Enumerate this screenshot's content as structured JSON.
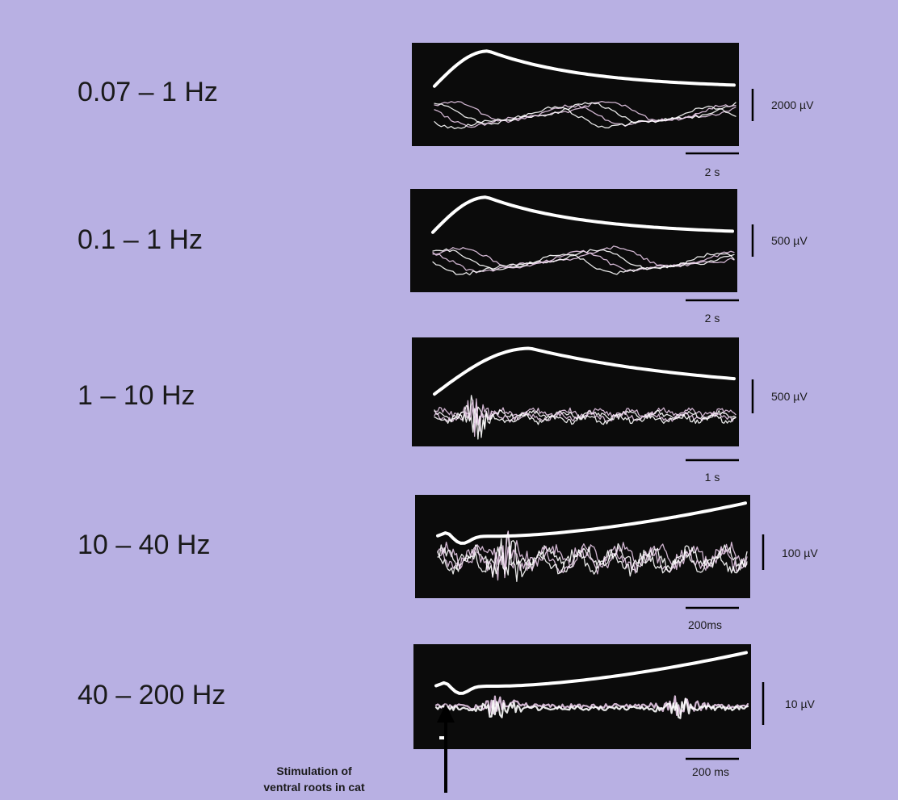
{
  "colors": {
    "page_background": "#b8b0e3",
    "panel_background": "#0b0b0b",
    "trace_primary": "#ffffff",
    "trace_secondary": "#e6c8e6",
    "text": "#1a1a1a",
    "scale_bar": "#000000"
  },
  "panels": [
    {
      "band_label": "0.07 – 1 Hz",
      "amplitude_label": "2000 µV",
      "time_label": "2 s",
      "envelope_shape": "slow-peak-then-decay",
      "trace_noise": "low"
    },
    {
      "band_label": "0.1 – 1 Hz",
      "amplitude_label": "500 µV",
      "time_label": "2 s",
      "envelope_shape": "slow-peak-then-decay",
      "trace_noise": "low"
    },
    {
      "band_label": "1 – 10 Hz",
      "amplitude_label": "500 µV",
      "time_label": "1 s",
      "envelope_shape": "rise-then-slow-decay",
      "trace_noise": "medium"
    },
    {
      "band_label": "10 – 40 Hz",
      "amplitude_label": "100 µV",
      "time_label": "200ms",
      "envelope_shape": "small-dip-then-rising",
      "trace_noise": "high"
    },
    {
      "band_label": "40 – 200 Hz",
      "amplitude_label": "10 µV",
      "time_label": "200 ms",
      "envelope_shape": "small-dip-then-rising",
      "trace_noise": "bursty"
    }
  ],
  "stimulus": {
    "caption_line1": "Stimulation of",
    "caption_line2": "ventral roots in cat",
    "arrow_icon": "up-arrow-icon"
  }
}
